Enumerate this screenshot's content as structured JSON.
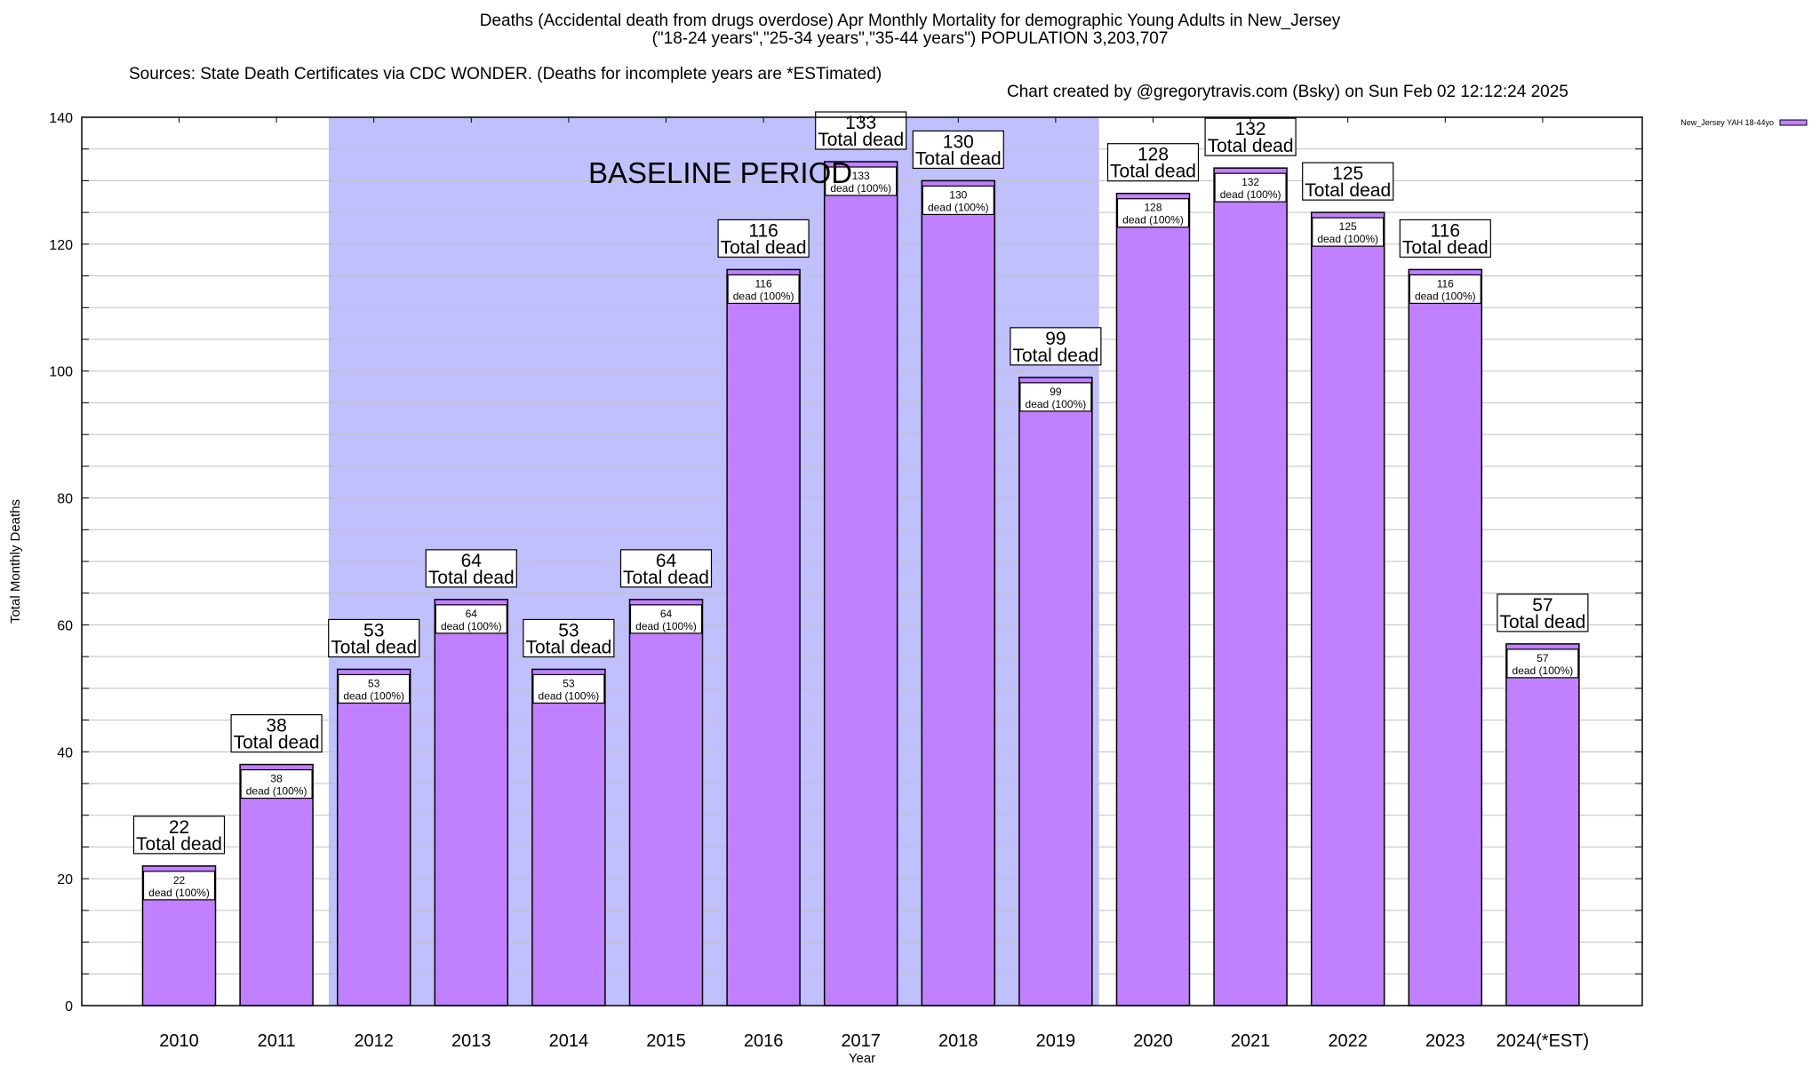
{
  "header": {
    "title_line1": "Deaths (Accidental death from drugs overdose) Apr Monthly Mortality for demographic Young Adults in New_Jersey",
    "title_line2": "(\"18-24 years\",\"25-34 years\",\"35-44 years\") POPULATION 3,203,707",
    "sources": "Sources: State Death Certificates via CDC WONDER. (Deaths for incomplete years are *ESTimated)",
    "credit": "Chart created by @gregorytravis.com (Bsky) on Sun Feb 02 12:12:24 2025"
  },
  "colors": {
    "bar_fill": "#c080ff",
    "baseline_shade": "#c0c0ff",
    "grid": "#c0c0c0",
    "axis": "#000000"
  },
  "chart_data": {
    "type": "bar",
    "title": "Deaths (Accidental death from drugs overdose) Apr Monthly Mortality for demographic Young Adults in New_Jersey",
    "xlabel": "Year",
    "ylabel": "Total Monthly Deaths",
    "ylim": [
      0,
      140
    ],
    "yticks": [
      0,
      20,
      40,
      60,
      80,
      100,
      120,
      140
    ],
    "grid_step": 5,
    "grid": true,
    "legend": {
      "position": "top-right",
      "entries": [
        "New_Jersey YAH 18-44yo"
      ]
    },
    "categories": [
      "2010",
      "2011",
      "2012",
      "2013",
      "2014",
      "2015",
      "2016",
      "2017",
      "2018",
      "2019",
      "2020",
      "2021",
      "2022",
      "2023",
      "2024(*EST)"
    ],
    "series": [
      {
        "name": "New_Jersey YAH 18-44yo",
        "values": [
          22,
          38,
          53,
          64,
          53,
          64,
          116,
          133,
          130,
          99,
          128,
          132,
          125,
          116,
          57
        ]
      }
    ],
    "total_label_suffix": "Total dead",
    "inner_label_suffix": "dead (100%)",
    "annotations": [
      {
        "type": "shaded-region",
        "label": "BASELINE PERIOD",
        "from_category": "2012",
        "to_category": "2019"
      }
    ]
  }
}
